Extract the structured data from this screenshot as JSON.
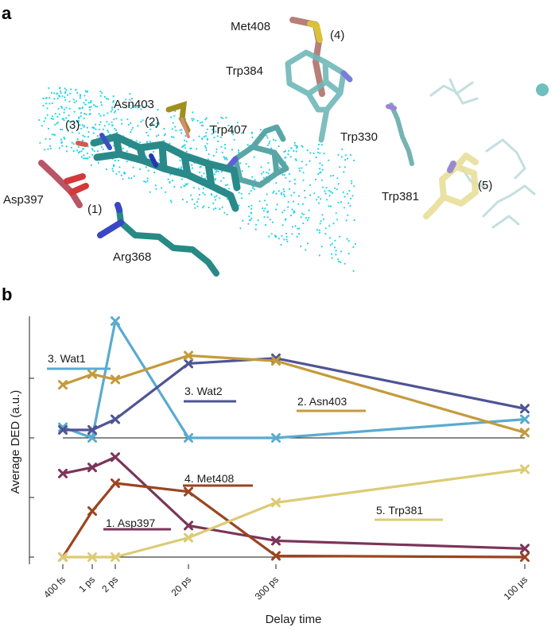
{
  "panel_a": {
    "letter": "a",
    "labels": [
      {
        "key": "met408",
        "text": "Met408"
      },
      {
        "key": "n4",
        "text": "(4)"
      },
      {
        "key": "trp384",
        "text": "Trp384"
      },
      {
        "key": "asn403",
        "text": "Asn403"
      },
      {
        "key": "n3",
        "text": "(3)"
      },
      {
        "key": "n2",
        "text": "(2)"
      },
      {
        "key": "trp407",
        "text": "Trp407"
      },
      {
        "key": "trp330",
        "text": "Trp330"
      },
      {
        "key": "asp397",
        "text": "Asp397"
      },
      {
        "key": "n1",
        "text": "(1)"
      },
      {
        "key": "trp381",
        "text": "Trp381"
      },
      {
        "key": "n5",
        "text": "(5)"
      },
      {
        "key": "arg368",
        "text": "Arg368"
      }
    ]
  },
  "panel_b": {
    "letter": "b"
  },
  "chart_data": {
    "type": "line",
    "title": "",
    "xlabel": "Delay time",
    "ylabel": "Average DED (a.u.)",
    "categories": [
      "400 fs",
      "1 ps",
      "2 ps",
      "20 ps",
      "300 ps",
      "100 µs"
    ],
    "x_axis_note": "non-uniform spacing of delay labels",
    "grid": false,
    "groups": [
      {
        "position": "upper",
        "series": [
          {
            "name": "3. Wat1",
            "color": "#5aabd0",
            "values": [
              0.2,
              0.0,
              2.2,
              0.0,
              0.0,
              0.35
            ]
          },
          {
            "name": "3. Wat2",
            "color": "#4e5494",
            "values": [
              0.15,
              0.15,
              0.35,
              1.4,
              1.5,
              0.55
            ]
          },
          {
            "name": "2. Asn403",
            "color": "#c49a3c",
            "values": [
              1.0,
              1.2,
              1.1,
              1.55,
              1.45,
              0.1
            ]
          }
        ]
      },
      {
        "position": "lower",
        "series": [
          {
            "name": "1. Asp397",
            "color": "#7c3458",
            "values": [
              1.38,
              1.48,
              1.65,
              0.52,
              0.27,
              0.14
            ]
          },
          {
            "name": "4. Met408",
            "color": "#9a4521",
            "values": [
              0.0,
              0.76,
              1.22,
              1.08,
              0.02,
              0.0
            ]
          },
          {
            "name": "5. Trp381",
            "color": "#dccb74",
            "values": [
              0.0,
              0.0,
              0.0,
              0.32,
              0.9,
              1.45
            ]
          }
        ]
      }
    ]
  }
}
